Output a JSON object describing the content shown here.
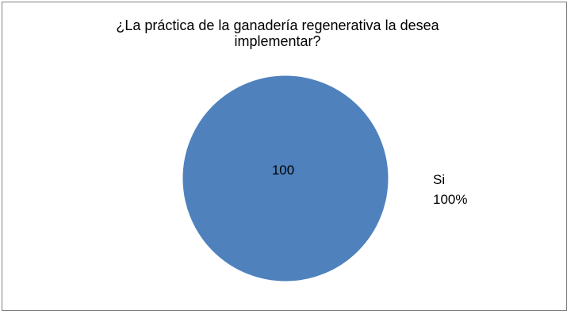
{
  "chart_data": {
    "type": "pie",
    "title": "¿La práctica de la ganadería regenerativa la desea implementar?",
    "slices": [
      {
        "label": "Si",
        "value": 100,
        "percent_label": "100%",
        "color": "#4F81BD"
      }
    ],
    "data_labels": [
      "100"
    ],
    "legend": "none",
    "category_labels_position": "outside-right"
  }
}
